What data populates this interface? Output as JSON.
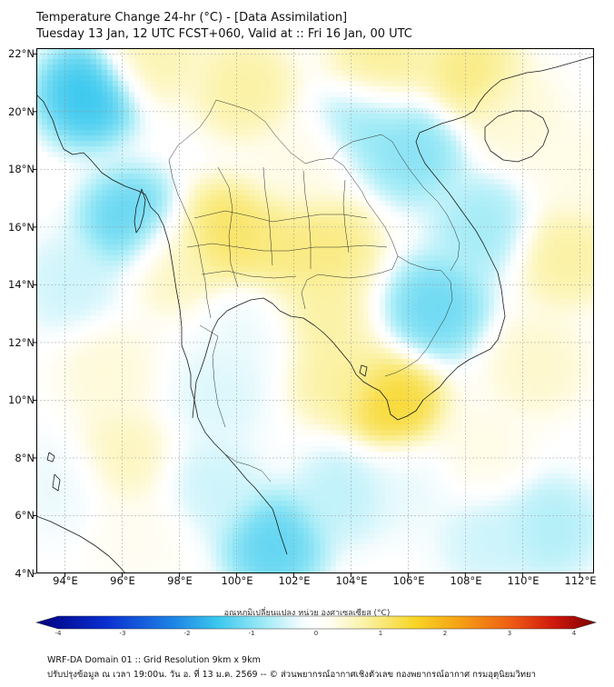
{
  "title": {
    "line1": "Temperature Change 24-hr (°C) - [Data Assimilation]",
    "line2": "Tuesday 13 Jan, 12 UTC FCST+060, Valid at :: Fri 16 Jan, 00 UTC"
  },
  "map": {
    "lon_range": [
      93,
      112.5
    ],
    "lat_range": [
      4,
      22.2
    ],
    "lat_labels": [
      "22°N",
      "20°N",
      "18°N",
      "16°N",
      "14°N",
      "12°N",
      "10°N",
      "8°N",
      "6°N",
      "4°N"
    ],
    "lon_labels": [
      "94°E",
      "96°E",
      "98°E",
      "100°E",
      "102°E",
      "104°E",
      "106°E",
      "108°E",
      "110°E",
      "112°E"
    ],
    "anomalies": [
      {
        "lon": 94.8,
        "lat": 20.6,
        "value": -1.6
      },
      {
        "lon": 96.3,
        "lat": 16.2,
        "value": -1.3
      },
      {
        "lon": 97.8,
        "lat": 14.8,
        "value": 0.6
      },
      {
        "lon": 99.6,
        "lat": 15.8,
        "value": 1.2
      },
      {
        "lon": 101.4,
        "lat": 15.2,
        "value": 1.0
      },
      {
        "lon": 103.2,
        "lat": 15.3,
        "value": 1.0
      },
      {
        "lon": 104.5,
        "lat": 19.5,
        "value": -0.9
      },
      {
        "lon": 106.2,
        "lat": 18.6,
        "value": -1.0
      },
      {
        "lon": 107.0,
        "lat": 13.2,
        "value": -1.2
      },
      {
        "lon": 108.6,
        "lat": 16.0,
        "value": -0.8
      },
      {
        "lon": 105.5,
        "lat": 9.8,
        "value": 1.5
      },
      {
        "lon": 103.5,
        "lat": 10.8,
        "value": 0.8
      },
      {
        "lon": 102.8,
        "lat": 12.9,
        "value": 0.8
      },
      {
        "lon": 105.0,
        "lat": 21.6,
        "value": 0.9
      },
      {
        "lon": 108.2,
        "lat": 21.3,
        "value": 1.0
      },
      {
        "lon": 100.3,
        "lat": 20.8,
        "value": 0.8
      },
      {
        "lon": 97.0,
        "lat": 22.0,
        "value": 0.7
      },
      {
        "lon": 111.5,
        "lat": 15.0,
        "value": 0.8
      },
      {
        "lon": 110.5,
        "lat": 11.2,
        "value": 0.5
      },
      {
        "lon": 96.0,
        "lat": 8.0,
        "value": 0.6
      },
      {
        "lon": 95.5,
        "lat": 11.0,
        "value": 0.4
      },
      {
        "lon": 94.2,
        "lat": 14.0,
        "value": -0.5
      },
      {
        "lon": 101.3,
        "lat": 5.0,
        "value": -1.3
      },
      {
        "lon": 103.8,
        "lat": 6.8,
        "value": -0.6
      },
      {
        "lon": 99.4,
        "lat": 10.2,
        "value": -0.4
      },
      {
        "lon": 100.6,
        "lat": 12.4,
        "value": -0.3
      },
      {
        "lon": 99.2,
        "lat": 7.0,
        "value": -0.5
      },
      {
        "lon": 106.0,
        "lat": 7.0,
        "value": -0.3
      },
      {
        "lon": 108.8,
        "lat": 5.2,
        "value": -0.5
      },
      {
        "lon": 111.0,
        "lat": 5.6,
        "value": -0.7
      },
      {
        "lon": 93.8,
        "lat": 7.0,
        "value": -0.3
      },
      {
        "lon": 108.5,
        "lat": 8.2,
        "value": 0.3
      },
      {
        "lon": 112.0,
        "lat": 18.0,
        "value": 0.3
      },
      {
        "lon": 109.8,
        "lat": 19.8,
        "value": 0.4
      },
      {
        "lon": 102.5,
        "lat": 18.2,
        "value": 0.3
      },
      {
        "lon": 96.5,
        "lat": 5.3,
        "value": 0.2
      }
    ]
  },
  "colorbar": {
    "label": "อุณหภูมิเปลี่ยนแปลง หน่วย องศาเซลเซียส (°C)",
    "min": -4,
    "max": 4,
    "ticks": [
      "-4",
      "-3",
      "-2",
      "-1",
      "0",
      "1",
      "2",
      "3",
      "4"
    ],
    "stops": [
      {
        "v": -4.0,
        "color": "#00007f"
      },
      {
        "v": -3.0,
        "color": "#0a2fd0"
      },
      {
        "v": -2.0,
        "color": "#1f88e6"
      },
      {
        "v": -1.4,
        "color": "#3cc8ee"
      },
      {
        "v": -0.7,
        "color": "#a6ecf7"
      },
      {
        "v": -0.2,
        "color": "#f4fcfe"
      },
      {
        "v": 0.0,
        "color": "#ffffff"
      },
      {
        "v": 0.2,
        "color": "#fffdf0"
      },
      {
        "v": 0.7,
        "color": "#fbf2a6"
      },
      {
        "v": 1.4,
        "color": "#f7d627"
      },
      {
        "v": 2.0,
        "color": "#f6a515"
      },
      {
        "v": 2.8,
        "color": "#ee5b14"
      },
      {
        "v": 3.4,
        "color": "#d0180e"
      },
      {
        "v": 4.0,
        "color": "#7a0000"
      }
    ]
  },
  "footer": {
    "line1": "WRF-DA Domain 01 :: Grid Resolution 9km x 9km",
    "line2": "ปรับปรุงข้อมูล ณ เวลา 19:00น. วัน อ. ที่ 13 ม.ค. 2569 -- © ส่วนพยากรณ์อากาศเชิงตัวเลข กองพยากรณ์อากาศ กรมอุตุนิยมวิทยา"
  }
}
